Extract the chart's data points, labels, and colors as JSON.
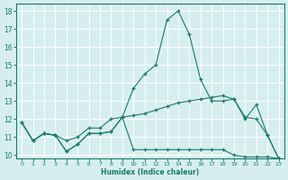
{
  "xlabel": "Humidex (Indice chaleur)",
  "x_values": [
    0,
    1,
    2,
    3,
    4,
    5,
    6,
    7,
    8,
    9,
    10,
    11,
    12,
    13,
    14,
    15,
    16,
    17,
    18,
    19,
    20,
    21,
    22,
    23
  ],
  "line1_main": [
    11.8,
    10.8,
    11.2,
    11.1,
    10.2,
    10.6,
    11.2,
    11.2,
    11.3,
    12.1,
    13.7,
    14.5,
    15.0,
    17.5,
    18.0,
    16.7,
    14.2,
    13.0,
    13.0,
    13.1,
    12.0,
    12.8,
    11.1,
    9.8
  ],
  "line2_upper": [
    11.8,
    10.8,
    11.2,
    11.1,
    10.8,
    11.0,
    11.5,
    11.5,
    12.0,
    12.1,
    12.2,
    12.3,
    12.5,
    12.7,
    12.9,
    13.0,
    13.1,
    13.2,
    13.3,
    13.1,
    12.1,
    12.0,
    11.1,
    9.8
  ],
  "line3_lower": [
    11.8,
    10.8,
    11.2,
    11.1,
    10.2,
    10.6,
    11.2,
    11.2,
    11.3,
    12.1,
    10.3,
    10.3,
    10.3,
    10.3,
    10.3,
    10.3,
    10.3,
    10.3,
    10.3,
    10.0,
    9.9,
    9.9,
    9.9,
    9.8
  ],
  "line_color": "#1a7a6e",
  "bg_color": "#d6eeee",
  "grid_color": "#b0d8d8",
  "ylim": [
    10,
    18
  ],
  "xlim": [
    -0.5,
    23
  ]
}
